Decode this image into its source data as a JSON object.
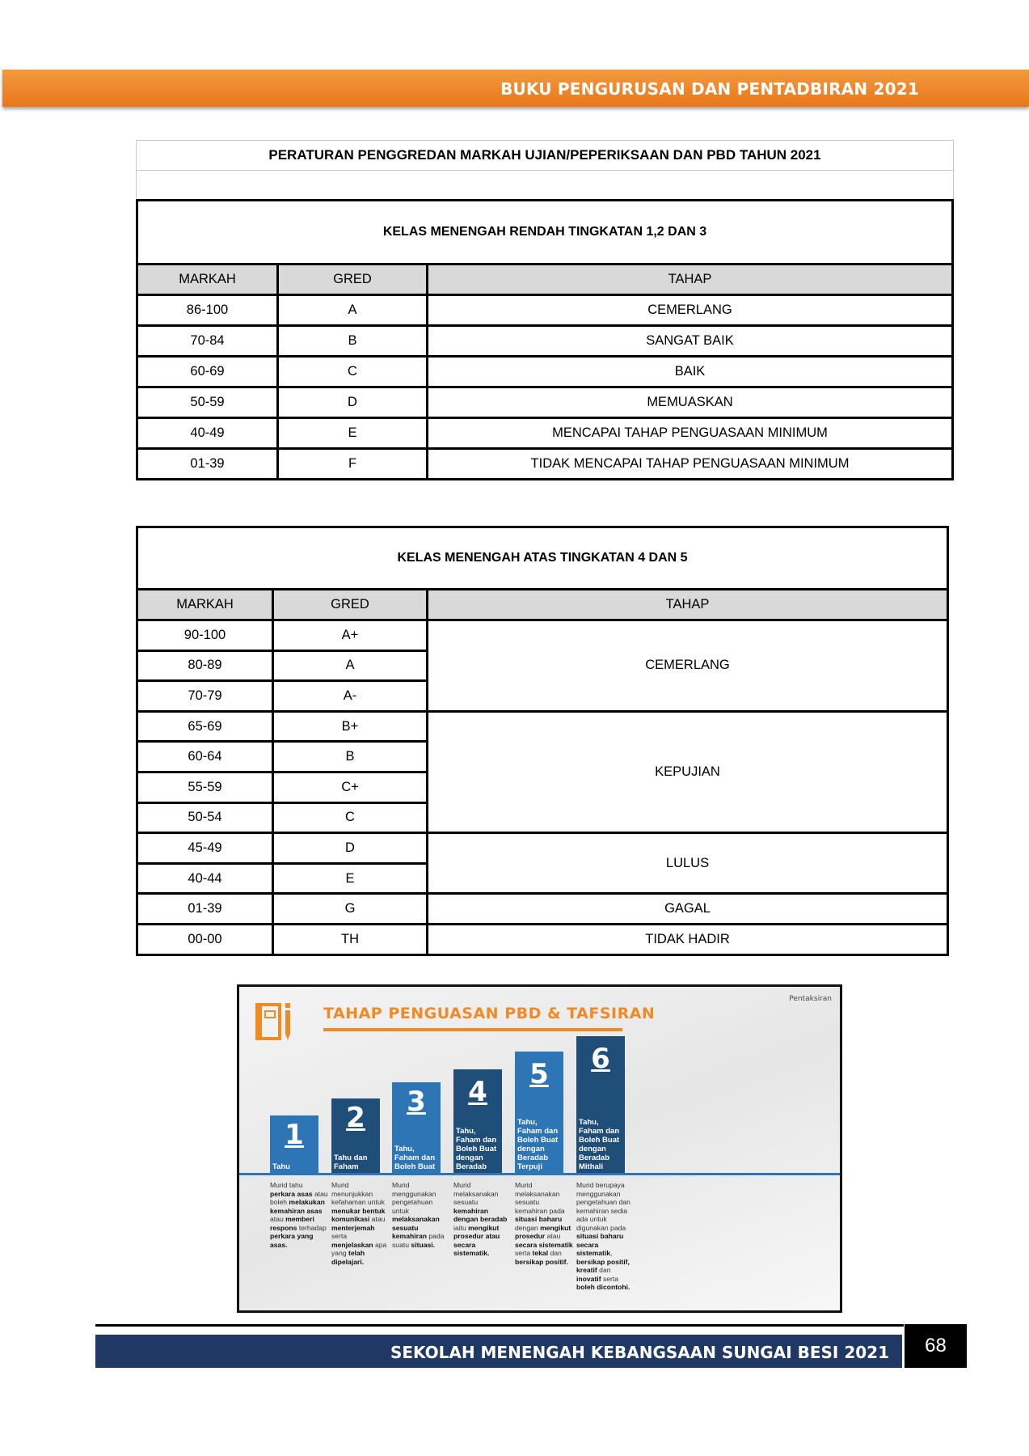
{
  "header": {
    "title": "BUKU PENGURUSAN DAN PENTADBIRAN 2021"
  },
  "doc_title": "PERATURAN PENGGREDAN MARKAH UJIAN/PEPERIKSAAN DAN PBD TAHUN 2021",
  "table1": {
    "caption": "KELAS MENENGAH RENDAH TINGKATAN 1,2 DAN 3",
    "headers": [
      "MARKAH",
      "GRED",
      "TAHAP"
    ],
    "rows": [
      [
        "86-100",
        "A",
        "CEMERLANG"
      ],
      [
        "70-84",
        "B",
        "SANGAT BAIK"
      ],
      [
        "60-69",
        "C",
        "BAIK"
      ],
      [
        "50-59",
        "D",
        "MEMUASKAN"
      ],
      [
        "40-49",
        "E",
        "MENCAPAI TAHAP PENGUASAAN MINIMUM"
      ],
      [
        "01-39",
        "F",
        "TIDAK MENCAPAI TAHAP PENGUASAAN MINIMUM"
      ]
    ]
  },
  "table2": {
    "caption": "KELAS MENENGAH ATAS TINGKATAN 4 DAN 5",
    "headers": [
      "MARKAH",
      "GRED",
      "TAHAP"
    ],
    "rows": [
      [
        "90-100",
        "A+"
      ],
      [
        "80-89",
        "A"
      ],
      [
        "70-79",
        "A-"
      ],
      [
        "65-69",
        "B+"
      ],
      [
        "60-64",
        "B"
      ],
      [
        "55-59",
        "C+"
      ],
      [
        "50-54",
        "C"
      ],
      [
        "45-49",
        "D"
      ],
      [
        "40-44",
        "E"
      ],
      [
        "01-39",
        "G"
      ],
      [
        "00-00",
        "TH"
      ]
    ],
    "tahap": [
      "CEMERLANG",
      "KEPUJIAN",
      "LULUS",
      "GAGAL",
      "TIDAK HADIR"
    ]
  },
  "pbd": {
    "title": "TAHAP PENGUASAN PBD & TAFSIRAN",
    "corner": "Pentaksiran",
    "icon": "notebook-pencil-icon",
    "colors": {
      "light": "#2e75b6",
      "dark": "#1f4e79",
      "accent": "#f08a24"
    },
    "levels": [
      {
        "num": "1",
        "label": "Tahu",
        "desc": [
          [
            "Murid tahu ",
            0
          ],
          [
            "perkara asas",
            1
          ],
          [
            " atau boleh ",
            0
          ],
          [
            "melakukan kemahiran asas",
            1
          ],
          [
            " atau ",
            0
          ],
          [
            "memberi respons",
            1
          ],
          [
            " terhadap ",
            0
          ],
          [
            "perkara yang asas.",
            1
          ]
        ]
      },
      {
        "num": "2",
        "label": "Tahu dan Faham",
        "desc": [
          [
            "Murid menunjukkan kefahaman untuk ",
            0
          ],
          [
            "menukar bentuk komunikasi",
            1
          ],
          [
            " atau ",
            0
          ],
          [
            "menterjemah",
            1
          ],
          [
            " serta ",
            0
          ],
          [
            "menjelaskan",
            1
          ],
          [
            " apa yang ",
            0
          ],
          [
            "telah dipelajari.",
            1
          ]
        ]
      },
      {
        "num": "3",
        "label": "Tahu, Faham dan Boleh Buat",
        "desc": [
          [
            "Murid menggunakan pengetahuan untuk ",
            0
          ],
          [
            "melaksanakan sesuatu kemahiran",
            1
          ],
          [
            " pada suatu ",
            0
          ],
          [
            "situasi.",
            1
          ]
        ]
      },
      {
        "num": "4",
        "label": "Tahu, Faham dan Boleh Buat dengan Beradab",
        "desc": [
          [
            "Murid melaksanakan sesuatu ",
            0
          ],
          [
            "kemahiran dengan beradab",
            1
          ],
          [
            " iaitu ",
            0
          ],
          [
            "mengikut prosedur atau secara sistematik.",
            1
          ]
        ]
      },
      {
        "num": "5",
        "label": "Tahu, Faham dan Boleh Buat dengan Beradab Terpuji",
        "desc": [
          [
            "Murid melaksanakan sesuatu kemahiran pada ",
            0
          ],
          [
            "situasi baharu",
            1
          ],
          [
            " dengan ",
            0
          ],
          [
            "mengikut prosedur",
            1
          ],
          [
            " atau ",
            0
          ],
          [
            "secara sistematik",
            1
          ],
          [
            " serta ",
            0
          ],
          [
            "tekal",
            1
          ],
          [
            " dan ",
            0
          ],
          [
            "bersikap positif.",
            1
          ]
        ]
      },
      {
        "num": "6",
        "label": "Tahu, Faham dan Boleh Buat dengan Beradab Mithali",
        "desc": [
          [
            "Murid berupaya menggunakan pengetahuan dan kemahiran sedia ada untuk digunakan pada ",
            0
          ],
          [
            "situasi baharu secara sistematik",
            1
          ],
          [
            ", ",
            0
          ],
          [
            "bersikap positif, kreatif",
            1
          ],
          [
            " dan ",
            0
          ],
          [
            "inovatif",
            1
          ],
          [
            " serta ",
            0
          ],
          [
            "boleh dicontohi.",
            1
          ]
        ]
      }
    ]
  },
  "footer": {
    "school": "SEKOLAH MENENGAH KEBANGSAAN SUNGAI BESI 2021",
    "page": "68"
  }
}
